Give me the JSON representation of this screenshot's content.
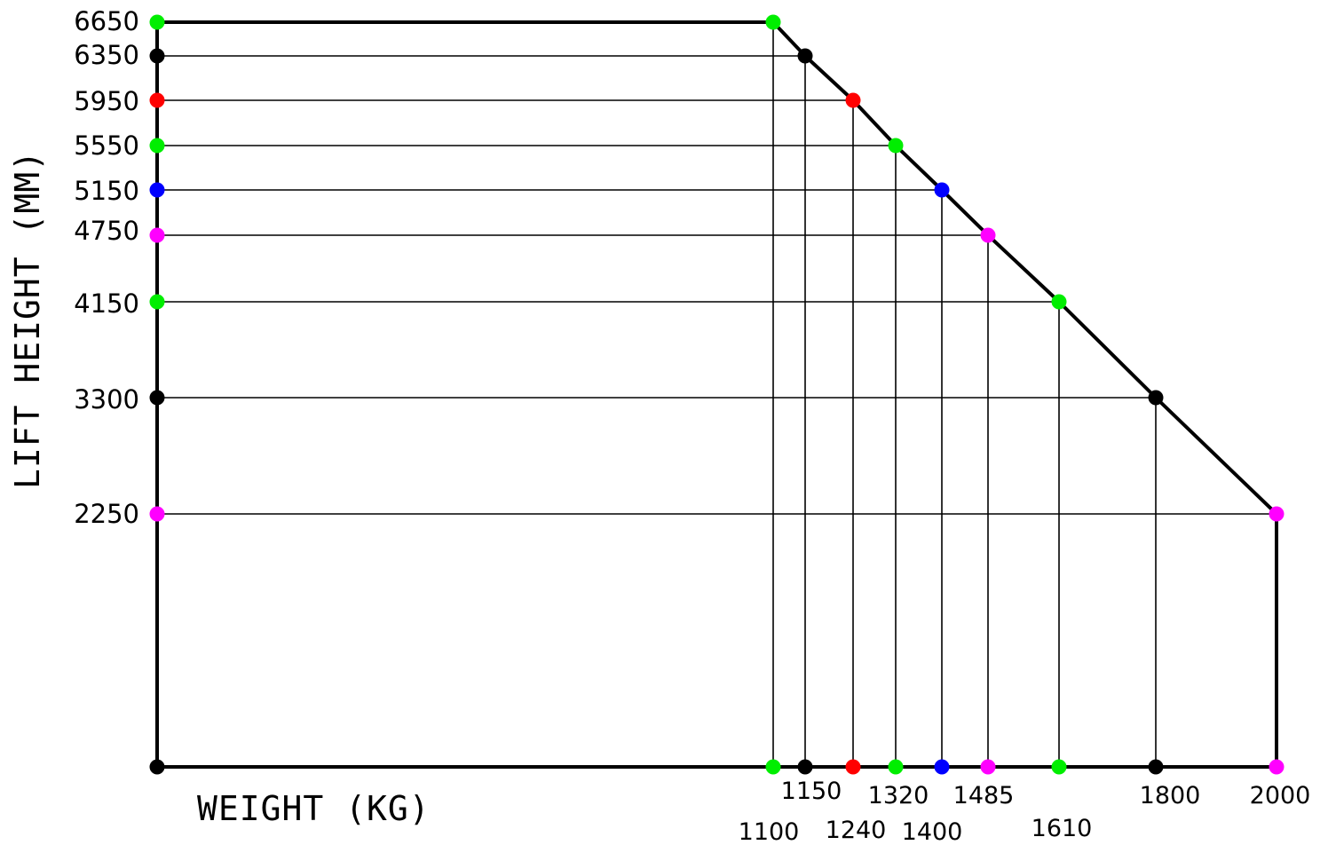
{
  "chart_data": {
    "type": "line",
    "title": "",
    "xlabel": "WEIGHT (KG)",
    "ylabel": "LIFT HEIGHT (MM)",
    "grid": "guide lines from each point to both axes",
    "points": [
      {
        "x": 1100,
        "y": 6650,
        "color": "#00ee00"
      },
      {
        "x": 1150,
        "y": 6350,
        "color": "#000000"
      },
      {
        "x": 1240,
        "y": 5950,
        "color": "#ff0000"
      },
      {
        "x": 1320,
        "y": 5550,
        "color": "#00ee00"
      },
      {
        "x": 1400,
        "y": 5150,
        "color": "#0000ff"
      },
      {
        "x": 1485,
        "y": 4750,
        "color": "#ff00ff"
      },
      {
        "x": 1610,
        "y": 4150,
        "color": "#00ee00"
      },
      {
        "x": 1800,
        "y": 3300,
        "color": "#000000"
      },
      {
        "x": 2000,
        "y": 2250,
        "color": "#ff00ff"
      }
    ],
    "x_ticks": [
      "1100",
      "1150",
      "1240",
      "1320",
      "1400",
      "1485",
      "1610",
      "1800",
      "2000"
    ],
    "y_ticks": [
      "6650",
      "6350",
      "5950",
      "5550",
      "5150",
      "4750",
      "4150",
      "3300",
      "2250"
    ],
    "origin_color": "#000000"
  }
}
